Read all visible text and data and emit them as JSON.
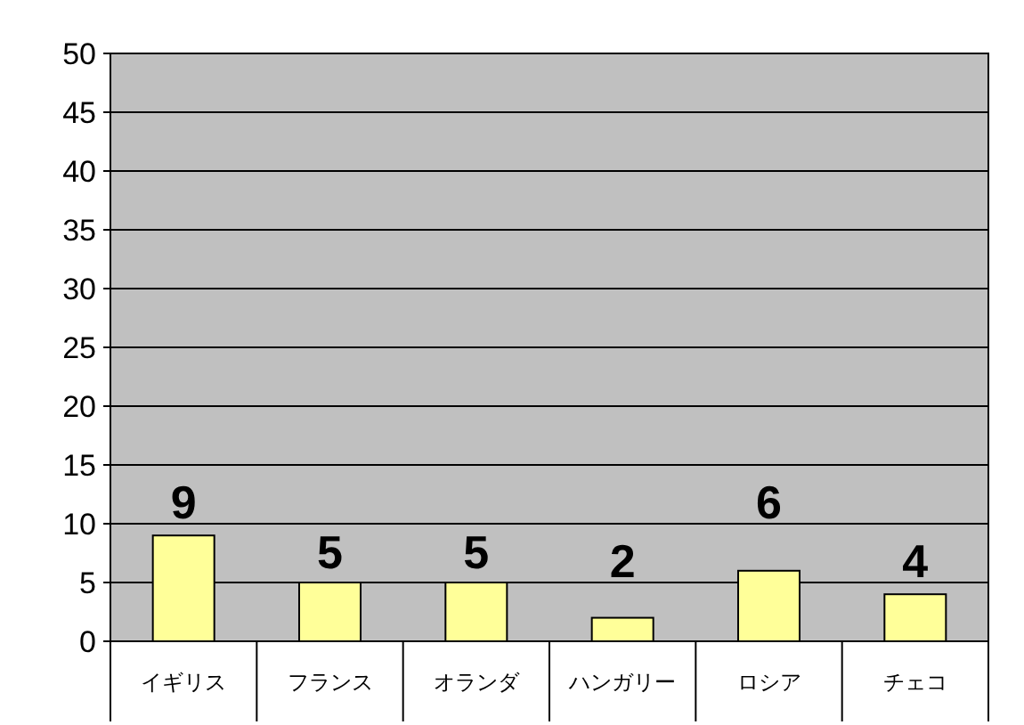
{
  "chart_data": {
    "type": "bar",
    "categories": [
      "イギリス",
      "フランス",
      "オランダ",
      "ハンガリー",
      "ロシア",
      "チェコ"
    ],
    "values": [
      9,
      5,
      5,
      2,
      6,
      4
    ],
    "color": "#ffff99",
    "ylim": [
      0,
      50
    ],
    "yticks": [
      0,
      5,
      10,
      15,
      20,
      25,
      30,
      35,
      40,
      45,
      50
    ],
    "grid": "y",
    "data_labels": true
  }
}
